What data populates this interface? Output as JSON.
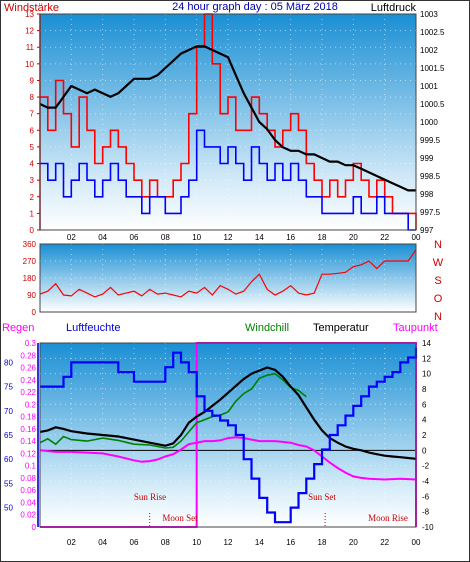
{
  "header": {
    "left_label": "Windstärke",
    "title": "24 hour graph day : 05 März 2018",
    "right_label": "Luftdruck"
  },
  "colors": {
    "wind_speed": "#ff0000",
    "wind_gust": "#0000ff",
    "pressure": "#000000",
    "direction": "#ff0000",
    "rain": "#ff00ff",
    "humidity": "#0000ff",
    "windchill": "#008000",
    "temperature": "#000000",
    "dewpoint": "#ff00ff",
    "axis_left": "#cc0000",
    "axis_humidity": "#0000cc",
    "bg_top": "#1a8fd4",
    "bg_bottom": "#ffffff"
  },
  "chart_data": [
    {
      "type": "line",
      "title": "24 hour graph day : 05 März 2018",
      "x_ticks": [
        "02",
        "04",
        "06",
        "08",
        "10",
        "12",
        "14",
        "16",
        "18",
        "20",
        "22",
        "00"
      ],
      "x_range_hours": [
        0,
        24
      ],
      "y_left": {
        "label": "Windstärke",
        "ylim": [
          0,
          13
        ],
        "ticks": [
          0,
          1,
          2,
          3,
          4,
          5,
          6,
          7,
          8,
          9,
          10,
          11,
          12,
          13
        ]
      },
      "y_right": {
        "label": "Luftdruck",
        "ylim": [
          997,
          1003
        ],
        "ticks": [
          "997",
          "997.5",
          "998",
          "998.5",
          "999",
          "999.5",
          "1000",
          "1000.5",
          "1001",
          "1001.5",
          "1002",
          "1002.5",
          "1003"
        ]
      },
      "series": [
        {
          "name": "Luftdruck",
          "axis": "right",
          "x": [
            0,
            0.5,
            1,
            1.5,
            2,
            2.5,
            3,
            3.5,
            4,
            4.5,
            5,
            5.5,
            6,
            6.5,
            7,
            7.5,
            8,
            8.5,
            9,
            9.5,
            10,
            10.5,
            11,
            11.5,
            12,
            12.5,
            13,
            13.5,
            14,
            14.5,
            15,
            15.5,
            16,
            16.5,
            17,
            17.5,
            18,
            18.5,
            19,
            19.5,
            20,
            20.5,
            21,
            21.5,
            22,
            22.5,
            23,
            23.5,
            24
          ],
          "values": [
            1000.5,
            1000.4,
            1000.4,
            1000.7,
            1001.0,
            1000.9,
            1000.8,
            1000.9,
            1000.8,
            1000.7,
            1000.8,
            1001.0,
            1001.2,
            1001.2,
            1001.2,
            1001.3,
            1001.5,
            1001.7,
            1001.9,
            1002.0,
            1002.1,
            1002.1,
            1002.0,
            1001.9,
            1001.8,
            1001.3,
            1000.8,
            1000.4,
            1000.0,
            999.8,
            999.5,
            999.3,
            999.2,
            999.2,
            999.1,
            999.1,
            999.0,
            998.9,
            998.9,
            998.8,
            998.8,
            998.7,
            998.6,
            998.5,
            998.4,
            998.3,
            998.2,
            998.1,
            998.1
          ]
        },
        {
          "name": "Windstärke (Mittel)",
          "axis": "left",
          "stepped": true,
          "x": [
            0,
            0.5,
            1,
            1.5,
            2,
            2.5,
            3,
            3.5,
            4,
            4.5,
            5,
            5.5,
            6,
            6.5,
            7,
            7.5,
            8,
            8.5,
            9,
            9.5,
            10,
            10.5,
            11,
            11.5,
            12,
            12.5,
            13,
            13.5,
            14,
            14.5,
            15,
            15.5,
            16,
            16.5,
            17,
            17.5,
            18,
            18.5,
            19,
            19.5,
            20,
            20.5,
            21,
            21.5,
            22,
            22.5,
            23,
            23.5,
            24
          ],
          "values": [
            4,
            3,
            4,
            2,
            3,
            4,
            3,
            2,
            3,
            4,
            3,
            2,
            2,
            1,
            2,
            2,
            1,
            1,
            2,
            3,
            6,
            5,
            5,
            4,
            5,
            4,
            3,
            5,
            4,
            3,
            4,
            3,
            4,
            3,
            2,
            2,
            1,
            1,
            1,
            1,
            2,
            1,
            1,
            2,
            1,
            1,
            1,
            0,
            0
          ]
        },
        {
          "name": "Windstärke (Böen)",
          "axis": "left",
          "stepped": true,
          "x": [
            0,
            0.5,
            1,
            1.5,
            2,
            2.5,
            3,
            3.5,
            4,
            4.5,
            5,
            5.5,
            6,
            6.5,
            7,
            7.5,
            8,
            8.5,
            9,
            9.5,
            10,
            10.5,
            11,
            11.5,
            12,
            12.5,
            13,
            13.5,
            14,
            14.5,
            15,
            15.5,
            16,
            16.5,
            17,
            17.5,
            18,
            18.5,
            19,
            19.5,
            20,
            20.5,
            21,
            21.5,
            22,
            22.5,
            23,
            23.5,
            24
          ],
          "values": [
            8,
            6,
            9,
            7,
            5,
            8,
            6,
            4,
            5,
            6,
            5,
            4,
            3,
            2,
            3,
            2,
            2,
            3,
            4,
            7,
            11,
            13,
            10,
            7,
            8,
            6,
            6,
            8,
            7,
            6,
            5,
            6,
            7,
            6,
            4,
            3,
            2,
            3,
            2,
            3,
            4,
            3,
            2,
            3,
            2,
            1,
            1,
            1,
            0
          ]
        }
      ]
    },
    {
      "type": "line",
      "y_left": {
        "ylim": [
          0,
          360
        ],
        "ticks": [
          0,
          90,
          180,
          270,
          360
        ]
      },
      "direction_labels": [
        "N",
        "W",
        "S",
        "O",
        "N"
      ],
      "x_ticks": [
        "02",
        "04",
        "06",
        "08",
        "10",
        "12",
        "14",
        "16",
        "18",
        "20",
        "22",
        "00"
      ],
      "series": [
        {
          "name": "Windrichtung",
          "x": [
            0,
            0.5,
            1,
            1.5,
            2,
            2.5,
            3,
            3.5,
            4,
            4.5,
            5,
            5.5,
            6,
            6.5,
            7,
            7.5,
            8,
            8.5,
            9,
            9.5,
            10,
            10.5,
            11,
            11.5,
            12,
            12.5,
            13,
            13.5,
            14,
            14.5,
            15,
            15.5,
            16,
            16.5,
            17,
            17.5,
            18,
            18.5,
            19,
            19.5,
            20,
            20.5,
            21,
            21.5,
            22,
            22.5,
            23,
            23.5,
            24
          ],
          "values": [
            95,
            110,
            150,
            90,
            85,
            120,
            100,
            80,
            95,
            130,
            90,
            100,
            110,
            85,
            120,
            95,
            100,
            90,
            80,
            110,
            100,
            130,
            90,
            140,
            120,
            95,
            110,
            160,
            200,
            120,
            90,
            110,
            140,
            100,
            90,
            100,
            200,
            200,
            205,
            210,
            240,
            250,
            270,
            230,
            270,
            270,
            270,
            270,
            330
          ]
        }
      ]
    },
    {
      "type": "line",
      "legend": [
        "Regen",
        "Luftfeuchte",
        "Windchill",
        "Temperatur",
        "Taupunkt"
      ],
      "x_ticks": [
        "02",
        "04",
        "06",
        "08",
        "10",
        "12",
        "14",
        "16",
        "18",
        "20",
        "22",
        "00"
      ],
      "y_rain": {
        "label": "Regen",
        "ylim": [
          0,
          0.3
        ],
        "ticks": [
          "0",
          "0.02",
          "0.04",
          "0.06",
          "0.08",
          "0.1",
          "0.12",
          "0.14",
          "0.16",
          "0.18",
          "0.2",
          "0.22",
          "0.24",
          "0.26",
          "0.28",
          "0.3"
        ]
      },
      "y_humidity": {
        "label": "Luftfeuchte",
        "ylim": [
          46,
          84
        ],
        "ticks": [
          "50",
          "55",
          "60",
          "65",
          "70",
          "75",
          "80"
        ]
      },
      "y_temp": {
        "ylim": [
          -10,
          14
        ],
        "ticks": [
          "-10",
          "-8",
          "-6",
          "-4",
          "-2",
          "0",
          "2",
          "4",
          "6",
          "8",
          "10",
          "12",
          "14"
        ]
      },
      "annotations": [
        "Sun Rise",
        "Moon Set",
        "Sun Set",
        "Moon Rise"
      ],
      "series": [
        {
          "name": "Luftfeuchte",
          "axis": "humidity",
          "x": [
            0,
            1,
            1.5,
            2,
            3,
            4,
            5,
            6,
            7,
            8,
            8.5,
            9,
            9.5,
            10,
            10.5,
            11,
            11.5,
            12,
            12.5,
            13,
            13.5,
            14,
            14.5,
            15,
            15.5,
            16,
            16.5,
            17,
            17.5,
            18,
            18.5,
            19,
            19.5,
            20,
            20.5,
            21,
            21.5,
            22,
            22.5,
            23,
            23.5,
            24
          ],
          "values": [
            75,
            75,
            77,
            80,
            80,
            80,
            78,
            76,
            76,
            79,
            82,
            80,
            78,
            73,
            70,
            69,
            68,
            67,
            65,
            60,
            56,
            52,
            49,
            47,
            47,
            50,
            53,
            56,
            59,
            62,
            65,
            67,
            69,
            71,
            73,
            75,
            76,
            77,
            78,
            80,
            81,
            83
          ]
        },
        {
          "name": "Temperatur",
          "axis": "temp",
          "x": [
            0,
            0.5,
            1,
            1.5,
            2,
            3,
            4,
            5,
            6,
            7,
            8,
            8.5,
            9,
            9.5,
            10,
            10.5,
            11,
            11.5,
            12,
            12.5,
            13,
            13.5,
            14,
            14.5,
            15,
            15.5,
            16,
            16.5,
            17,
            17.5,
            18,
            18.5,
            19,
            19.5,
            20,
            20.5,
            21,
            21.5,
            22,
            22.5,
            23,
            23.5,
            24
          ],
          "values": [
            2.4,
            2.6,
            3.0,
            2.8,
            2.5,
            2.2,
            2.0,
            1.8,
            1.4,
            1.0,
            0.6,
            0.9,
            2.0,
            3.6,
            4.4,
            5.0,
            5.8,
            6.6,
            7.5,
            8.4,
            9.3,
            10.0,
            10.4,
            10.8,
            10.5,
            9.6,
            8.3,
            7.2,
            5.6,
            4.0,
            2.6,
            1.6,
            1.0,
            0.5,
            0.2,
            0.0,
            -0.3,
            -0.5,
            -0.7,
            -0.8,
            -0.9,
            -1.0,
            -1.1
          ]
        },
        {
          "name": "Windchill",
          "axis": "temp",
          "x": [
            0,
            0.5,
            1,
            1.5,
            2,
            3,
            4,
            5,
            6,
            7,
            8,
            8.5,
            9,
            9.5,
            10,
            10.5,
            11,
            11.5,
            12,
            12.5,
            13,
            13.5,
            14,
            14.5,
            15,
            15.5,
            16,
            16.5,
            17
          ],
          "values": [
            1.0,
            1.5,
            0.8,
            1.8,
            1.4,
            1.2,
            1.6,
            1.3,
            0.8,
            0.7,
            0.3,
            0.4,
            1.2,
            2.4,
            3.6,
            4.0,
            4.4,
            4.6,
            5.0,
            6.4,
            7.4,
            8.0,
            9.4,
            9.8,
            10.0,
            9.2,
            8.2,
            7.8,
            7.0
          ]
        },
        {
          "name": "Taupunkt",
          "axis": "temp",
          "x": [
            0,
            1,
            2,
            3,
            4,
            5,
            6,
            6.5,
            7,
            7.5,
            8,
            8.5,
            9,
            9.5,
            10,
            10.5,
            11,
            11.5,
            12,
            12.5,
            13,
            13.5,
            14,
            14.5,
            15,
            15.5,
            16,
            16.5,
            17,
            17.5,
            18,
            18.5,
            19,
            19.5,
            20,
            20.5,
            21,
            22,
            23,
            24
          ],
          "values": [
            0,
            -0.2,
            -0.2,
            -0.3,
            -0.4,
            -0.8,
            -1.3,
            -1.5,
            -1.4,
            -1.2,
            -0.8,
            -0.5,
            0.1,
            0.8,
            1.0,
            1.2,
            1.2,
            1.3,
            1.6,
            1.7,
            1.6,
            1.4,
            1.2,
            1.2,
            1.2,
            1.1,
            1.0,
            0.7,
            0.5,
            0.0,
            -0.8,
            -1.6,
            -2.3,
            -2.9,
            -3.4,
            -3.6,
            -3.7,
            -3.8,
            -3.7,
            -3.8
          ]
        }
      ]
    }
  ]
}
